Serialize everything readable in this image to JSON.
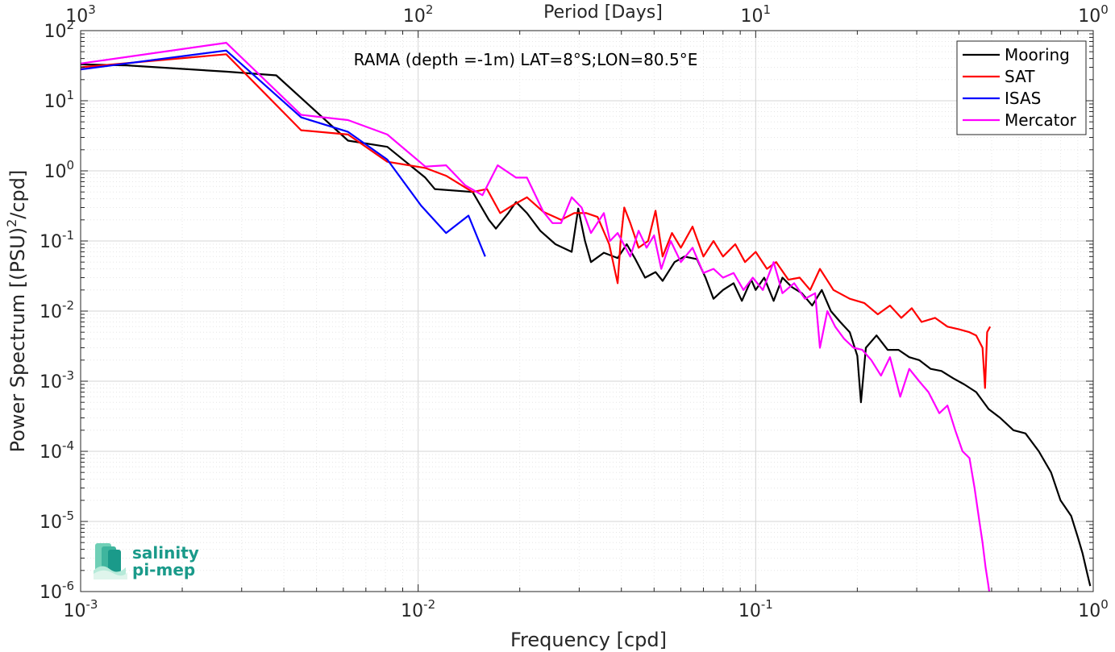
{
  "chart_data": {
    "type": "line",
    "title": "RAMA (depth =-1m) LAT=8°S;LON=80.5°E",
    "xlabel": "Frequency [cpd]",
    "ylabel_main": "Power Spectrum [(PSU)",
    "ylabel_sup": "2",
    "ylabel_end": "/cpd]",
    "top_xlabel": "Period [Days]",
    "xscale": "log",
    "yscale": "log",
    "xlim": [
      0.001,
      1
    ],
    "ylim": [
      1e-06,
      100
    ],
    "grid": true,
    "legend_position": "top-right",
    "x_ticks": [
      {
        "base": "10",
        "exp": "-3",
        "value": 0.001
      },
      {
        "base": "10",
        "exp": "-2",
        "value": 0.01
      },
      {
        "base": "10",
        "exp": "-1",
        "value": 0.1
      },
      {
        "base": "10",
        "exp": "0",
        "value": 1
      }
    ],
    "top_ticks": [
      {
        "base": "10",
        "exp": "3",
        "value": 0.001
      },
      {
        "base": "10",
        "exp": "2",
        "value": 0.01
      },
      {
        "base": "10",
        "exp": "1",
        "value": 0.1
      },
      {
        "base": "10",
        "exp": "0",
        "value": 1
      }
    ],
    "y_ticks": [
      {
        "base": "10",
        "exp": "2",
        "value": 100
      },
      {
        "base": "10",
        "exp": "1",
        "value": 10
      },
      {
        "base": "10",
        "exp": "0",
        "value": 1
      },
      {
        "base": "10",
        "exp": "-1",
        "value": 0.1
      },
      {
        "base": "10",
        "exp": "-2",
        "value": 0.01
      },
      {
        "base": "10",
        "exp": "-3",
        "value": 0.001
      },
      {
        "base": "10",
        "exp": "-4",
        "value": 0.0001
      },
      {
        "base": "10",
        "exp": "-5",
        "value": 1e-05
      },
      {
        "base": "10",
        "exp": "-6",
        "value": 1e-06
      }
    ],
    "series": [
      {
        "name": "Mooring",
        "color": "#000000",
        "points": [
          [
            0.001,
            33
          ],
          [
            0.00137,
            32
          ],
          [
            0.0027,
            26
          ],
          [
            0.0038,
            23
          ],
          [
            0.0062,
            2.7
          ],
          [
            0.0081,
            2.2
          ],
          [
            0.0105,
            0.8
          ],
          [
            0.0112,
            0.55
          ],
          [
            0.0145,
            0.5
          ],
          [
            0.0162,
            0.2
          ],
          [
            0.017,
            0.15
          ],
          [
            0.0185,
            0.25
          ],
          [
            0.0195,
            0.36
          ],
          [
            0.021,
            0.25
          ],
          [
            0.023,
            0.14
          ],
          [
            0.0255,
            0.09
          ],
          [
            0.0285,
            0.07
          ],
          [
            0.0298,
            0.29
          ],
          [
            0.0312,
            0.1
          ],
          [
            0.0325,
            0.05
          ],
          [
            0.0355,
            0.068
          ],
          [
            0.039,
            0.057
          ],
          [
            0.0415,
            0.09
          ],
          [
            0.044,
            0.055
          ],
          [
            0.047,
            0.03
          ],
          [
            0.0505,
            0.036
          ],
          [
            0.053,
            0.027
          ],
          [
            0.0575,
            0.05
          ],
          [
            0.0615,
            0.06
          ],
          [
            0.067,
            0.055
          ],
          [
            0.071,
            0.03
          ],
          [
            0.075,
            0.015
          ],
          [
            0.08,
            0.02
          ],
          [
            0.086,
            0.025
          ],
          [
            0.091,
            0.014
          ],
          [
            0.097,
            0.028
          ],
          [
            0.1,
            0.02
          ],
          [
            0.106,
            0.03
          ],
          [
            0.113,
            0.014
          ],
          [
            0.12,
            0.03
          ],
          [
            0.128,
            0.022
          ],
          [
            0.137,
            0.018
          ],
          [
            0.147,
            0.012
          ],
          [
            0.157,
            0.02
          ],
          [
            0.167,
            0.01
          ],
          [
            0.178,
            0.007
          ],
          [
            0.19,
            0.005
          ],
          [
            0.2,
            0.0023
          ],
          [
            0.205,
            0.0005
          ],
          [
            0.212,
            0.003
          ],
          [
            0.228,
            0.0045
          ],
          [
            0.246,
            0.0028
          ],
          [
            0.265,
            0.0028
          ],
          [
            0.285,
            0.0022
          ],
          [
            0.305,
            0.002
          ],
          [
            0.33,
            0.0015
          ],
          [
            0.355,
            0.0014
          ],
          [
            0.385,
            0.0011
          ],
          [
            0.415,
            0.0009
          ],
          [
            0.45,
            0.0007
          ],
          [
            0.49,
            0.0004
          ],
          [
            0.53,
            0.0003
          ],
          [
            0.58,
            0.0002
          ],
          [
            0.63,
            0.00018
          ],
          [
            0.69,
            0.0001
          ],
          [
            0.75,
            5e-05
          ],
          [
            0.8,
            2e-05
          ],
          [
            0.86,
            1.2e-05
          ],
          [
            0.9,
            6e-06
          ],
          [
            0.93,
            3.5e-06
          ],
          [
            0.96,
            1.8e-06
          ],
          [
            0.98,
            1.2e-06
          ]
        ]
      },
      {
        "name": "SAT",
        "color": "#ff0000",
        "points": [
          [
            0.001,
            30
          ],
          [
            0.0027,
            46
          ],
          [
            0.0045,
            3.8
          ],
          [
            0.0062,
            3.3
          ],
          [
            0.0081,
            1.35
          ],
          [
            0.0105,
            1.1
          ],
          [
            0.0121,
            0.85
          ],
          [
            0.0145,
            0.5
          ],
          [
            0.016,
            0.55
          ],
          [
            0.0175,
            0.25
          ],
          [
            0.019,
            0.32
          ],
          [
            0.021,
            0.42
          ],
          [
            0.0235,
            0.26
          ],
          [
            0.0265,
            0.2
          ],
          [
            0.029,
            0.25
          ],
          [
            0.0315,
            0.25
          ],
          [
            0.034,
            0.22
          ],
          [
            0.0368,
            0.09
          ],
          [
            0.039,
            0.025
          ],
          [
            0.0398,
            0.1
          ],
          [
            0.0408,
            0.3
          ],
          [
            0.0425,
            0.18
          ],
          [
            0.045,
            0.08
          ],
          [
            0.048,
            0.1
          ],
          [
            0.0505,
            0.27
          ],
          [
            0.053,
            0.06
          ],
          [
            0.0565,
            0.13
          ],
          [
            0.06,
            0.08
          ],
          [
            0.065,
            0.16
          ],
          [
            0.07,
            0.06
          ],
          [
            0.075,
            0.1
          ],
          [
            0.08,
            0.06
          ],
          [
            0.087,
            0.09
          ],
          [
            0.093,
            0.05
          ],
          [
            0.1,
            0.07
          ],
          [
            0.108,
            0.04
          ],
          [
            0.115,
            0.05
          ],
          [
            0.125,
            0.028
          ],
          [
            0.135,
            0.03
          ],
          [
            0.145,
            0.02
          ],
          [
            0.155,
            0.04
          ],
          [
            0.17,
            0.02
          ],
          [
            0.19,
            0.015
          ],
          [
            0.21,
            0.013
          ],
          [
            0.23,
            0.009
          ],
          [
            0.25,
            0.012
          ],
          [
            0.27,
            0.008
          ],
          [
            0.29,
            0.011
          ],
          [
            0.31,
            0.007
          ],
          [
            0.34,
            0.008
          ],
          [
            0.37,
            0.006
          ],
          [
            0.4,
            0.0055
          ],
          [
            0.43,
            0.005
          ],
          [
            0.45,
            0.0045
          ],
          [
            0.47,
            0.003
          ],
          [
            0.478,
            0.0008
          ],
          [
            0.485,
            0.005
          ],
          [
            0.495,
            0.006
          ]
        ]
      },
      {
        "name": "ISAS",
        "color": "#0000ff",
        "points": [
          [
            0.001,
            28
          ],
          [
            0.0027,
            52
          ],
          [
            0.0045,
            5.8
          ],
          [
            0.0062,
            3.6
          ],
          [
            0.0081,
            1.45
          ],
          [
            0.0102,
            0.32
          ],
          [
            0.0121,
            0.13
          ],
          [
            0.0141,
            0.23
          ],
          [
            0.0158,
            0.06
          ]
        ]
      },
      {
        "name": "Mercator",
        "color": "#ff00ff",
        "points": [
          [
            0.001,
            34
          ],
          [
            0.0027,
            67
          ],
          [
            0.0045,
            6.3
          ],
          [
            0.0062,
            5.3
          ],
          [
            0.0081,
            3.3
          ],
          [
            0.0105,
            1.15
          ],
          [
            0.0121,
            1.2
          ],
          [
            0.0138,
            0.62
          ],
          [
            0.0155,
            0.45
          ],
          [
            0.0172,
            1.2
          ],
          [
            0.0195,
            0.8
          ],
          [
            0.021,
            0.8
          ],
          [
            0.0235,
            0.26
          ],
          [
            0.025,
            0.18
          ],
          [
            0.0265,
            0.18
          ],
          [
            0.0285,
            0.42
          ],
          [
            0.0305,
            0.3
          ],
          [
            0.0325,
            0.13
          ],
          [
            0.0355,
            0.25
          ],
          [
            0.037,
            0.1
          ],
          [
            0.039,
            0.13
          ],
          [
            0.0425,
            0.06
          ],
          [
            0.045,
            0.14
          ],
          [
            0.0475,
            0.08
          ],
          [
            0.05,
            0.12
          ],
          [
            0.0525,
            0.04
          ],
          [
            0.056,
            0.1
          ],
          [
            0.06,
            0.05
          ],
          [
            0.065,
            0.08
          ],
          [
            0.07,
            0.035
          ],
          [
            0.075,
            0.04
          ],
          [
            0.08,
            0.03
          ],
          [
            0.086,
            0.035
          ],
          [
            0.092,
            0.02
          ],
          [
            0.098,
            0.03
          ],
          [
            0.105,
            0.02
          ],
          [
            0.113,
            0.05
          ],
          [
            0.12,
            0.018
          ],
          [
            0.13,
            0.025
          ],
          [
            0.14,
            0.015
          ],
          [
            0.15,
            0.018
          ],
          [
            0.155,
            0.003
          ],
          [
            0.163,
            0.01
          ],
          [
            0.172,
            0.006
          ],
          [
            0.183,
            0.004
          ],
          [
            0.195,
            0.003
          ],
          [
            0.207,
            0.0028
          ],
          [
            0.22,
            0.002
          ],
          [
            0.235,
            0.0012
          ],
          [
            0.25,
            0.0022
          ],
          [
            0.268,
            0.0006
          ],
          [
            0.285,
            0.0015
          ],
          [
            0.305,
            0.001
          ],
          [
            0.325,
            0.0007
          ],
          [
            0.35,
            0.00035
          ],
          [
            0.37,
            0.00045
          ],
          [
            0.39,
            0.0002
          ],
          [
            0.41,
            0.0001
          ],
          [
            0.43,
            8e-05
          ],
          [
            0.445,
            3e-05
          ],
          [
            0.46,
            1e-05
          ],
          [
            0.47,
            5e-06
          ],
          [
            0.48,
            2.2e-06
          ],
          [
            0.488,
            1.3e-06
          ],
          [
            0.492,
            1e-06
          ]
        ]
      }
    ]
  },
  "logo": {
    "line1": "salinity",
    "line2": "pi-mep",
    "color": "#1a9a8a"
  }
}
